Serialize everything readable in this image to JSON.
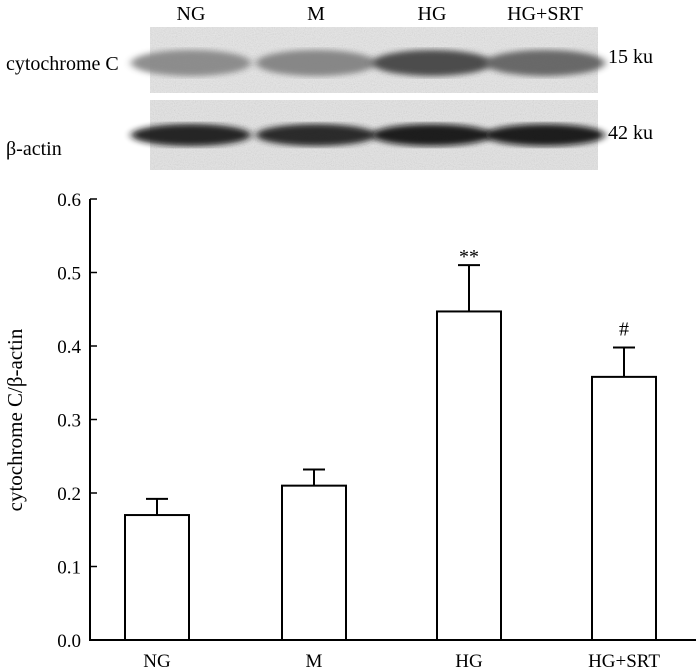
{
  "blot": {
    "lane_labels": [
      "NG",
      "M",
      "HG",
      "HG+SRT"
    ],
    "rows": [
      {
        "label": "cytochrome C",
        "size": "15 ku",
        "intensity": [
          0.35,
          0.38,
          0.72,
          0.55
        ]
      },
      {
        "label": "β-actin",
        "size": "42 ku",
        "intensity": [
          0.95,
          0.9,
          1.0,
          1.0
        ]
      }
    ]
  },
  "chart_data": {
    "type": "bar",
    "categories": [
      "NG",
      "M",
      "HG",
      "HG+SRT"
    ],
    "series": [
      {
        "values": [
          0.17,
          0.21,
          0.447,
          0.358
        ],
        "error": [
          0.022,
          0.022,
          0.063,
          0.04
        ]
      }
    ],
    "annotations": [
      "",
      "",
      "**",
      "#"
    ],
    "ylabel": "cytochrome C/β-actin",
    "xlabel": "",
    "ylim": [
      0,
      0.6
    ],
    "yticks": [
      "0.0",
      "0.1",
      "0.2",
      "0.3",
      "0.4",
      "0.5",
      "0.6"
    ],
    "grid": false,
    "colors": {
      "bar_fill": "#ffffff",
      "stroke": "#000000"
    }
  }
}
